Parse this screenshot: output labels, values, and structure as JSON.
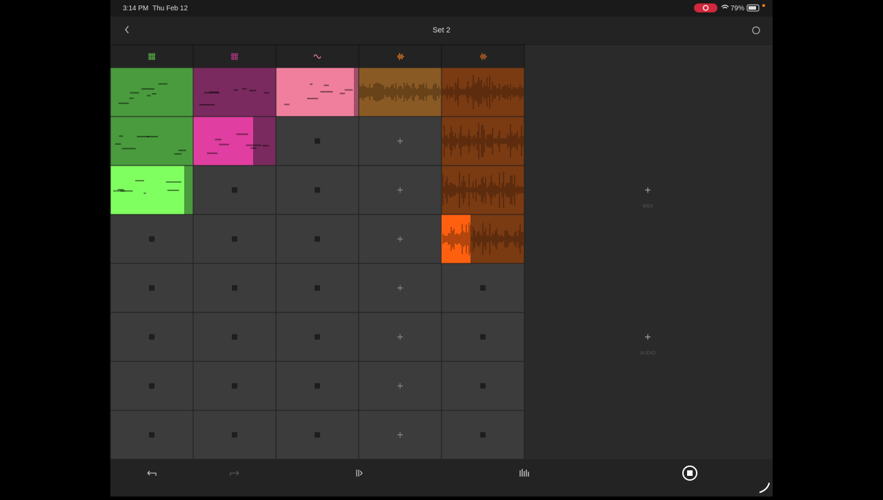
{
  "status_bar": {
    "time": "3:14 PM",
    "date": "Thu Feb 12",
    "battery": "79%"
  },
  "header": {
    "title": "Set 2"
  },
  "add_track": {
    "midi": "MIDI",
    "audio": "AUDIO"
  }
}
